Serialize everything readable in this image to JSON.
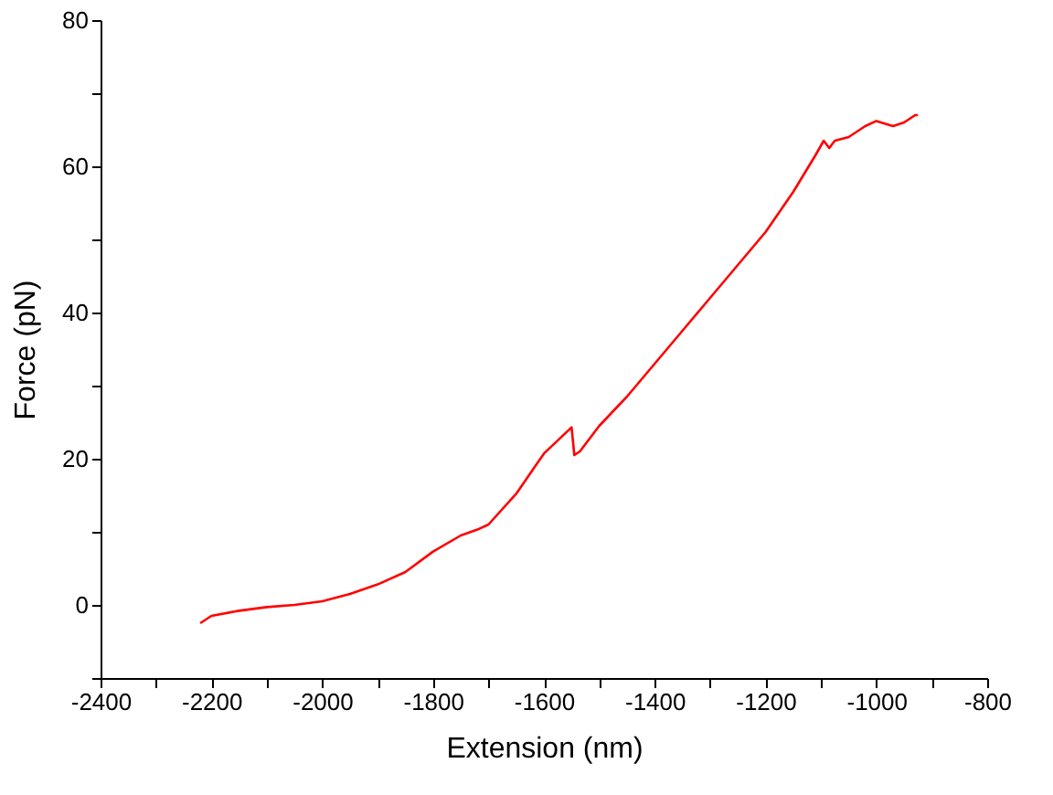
{
  "chart_data": {
    "type": "line",
    "xlabel": "Extension (nm)",
    "ylabel": "Force (pN)",
    "x": [
      -2220,
      -2200,
      -2150,
      -2100,
      -2050,
      -2000,
      -1950,
      -1900,
      -1850,
      -1800,
      -1750,
      -1720,
      -1700,
      -1650,
      -1600,
      -1550,
      -1545,
      -1535,
      -1500,
      -1450,
      -1400,
      -1350,
      -1300,
      -1250,
      -1200,
      -1150,
      -1110,
      -1095,
      -1085,
      -1075,
      -1050,
      -1020,
      -1000,
      -970,
      -950,
      -930,
      -925
    ],
    "series": [
      {
        "color": "#ff0000",
        "values": [
          -2.5,
          -1.5,
          -0.8,
          -0.3,
          0,
          0.5,
          1.5,
          2.8,
          4.5,
          7.3,
          9.5,
          10.3,
          11,
          15.2,
          20.7,
          24.3,
          20.5,
          21,
          24.5,
          28.5,
          33,
          37.5,
          42,
          46.5,
          51,
          56.5,
          61.5,
          63.5,
          62.5,
          63.5,
          64,
          65.5,
          66.2,
          65.5,
          66,
          67,
          67
        ]
      }
    ],
    "xlim": [
      -2400,
      -800
    ],
    "xticks": [
      -2400,
      {
        "value": -2300,
        "label": null
      },
      -2200,
      {
        "value": -2100,
        "label": null
      },
      -2000,
      {
        "value": -1900,
        "label": null
      },
      -1800,
      {
        "value": -1700,
        "label": null
      },
      -1600,
      {
        "value": -1500,
        "label": null
      },
      -1400,
      {
        "value": -1300,
        "label": null
      },
      -1200,
      {
        "value": -1100,
        "label": null
      },
      -1000,
      {
        "value": -900,
        "label": null
      },
      -800
    ],
    "ylim": [
      -10,
      80
    ],
    "yticks": [
      {
        "value": -10,
        "label": null
      },
      0,
      {
        "value": 10,
        "label": null
      },
      20,
      {
        "value": 30,
        "label": null
      },
      40,
      {
        "value": 50,
        "label": null
      },
      60,
      {
        "value": 70,
        "label": null
      },
      80
    ],
    "grid": false,
    "marker": "none",
    "line_style": "solid"
  }
}
